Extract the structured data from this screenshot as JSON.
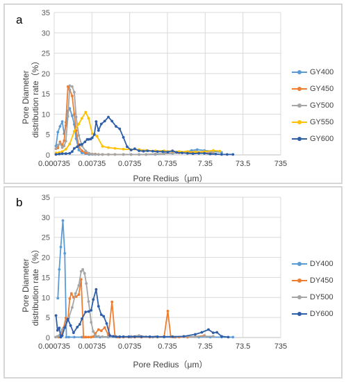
{
  "charts": [
    {
      "panel_label": "a",
      "ylabel_line1": "Pore Diameter",
      "ylabel_line2": "distribution rate（%）",
      "xlabel": "Pore Redius（μm）",
      "legend": [
        {
          "name": "GY400",
          "color": "#5b9bd5"
        },
        {
          "name": "GY450",
          "color": "#ed7d31"
        },
        {
          "name": "GY500",
          "color": "#a5a5a5"
        },
        {
          "name": "GY550",
          "color": "#ffc000"
        },
        {
          "name": "GY600",
          "color": "#2e5ea8"
        }
      ]
    },
    {
      "panel_label": "b",
      "ylabel_line1": "Pore Diameter",
      "ylabel_line2": "distribution rate（%）",
      "xlabel": "Pore Redius（μm）",
      "legend": [
        {
          "name": "DY400",
          "color": "#5b9bd5"
        },
        {
          "name": "DY450",
          "color": "#ed7d31"
        },
        {
          "name": "DY500",
          "color": "#a5a5a5"
        },
        {
          "name": "DY600",
          "color": "#2e5ea8"
        }
      ]
    }
  ],
  "chart_data": [
    {
      "type": "line",
      "x_scale": "log",
      "xlim": [
        0.000735,
        735
      ],
      "ylim": [
        0,
        35
      ],
      "grid": true,
      "legend_position": "right",
      "x_ticks": [
        "0.000735",
        "0.00735",
        "0.0735",
        "0.735",
        "7.35",
        "73.5",
        "735"
      ],
      "x_tick_values": [
        0.000735,
        0.00735,
        0.0735,
        0.735,
        7.35,
        73.5,
        735
      ],
      "y_ticks": [
        "0",
        "5",
        "10",
        "15",
        "20",
        "25",
        "30",
        "35"
      ],
      "y_tick_values": [
        0,
        5,
        10,
        15,
        20,
        25,
        30,
        35
      ],
      "series": [
        {
          "name": "GY400",
          "color": "#5b9bd5",
          "x": [
            0.00082,
            0.00092,
            0.00105,
            0.0012,
            0.00135,
            0.0015,
            0.0017,
            0.0019,
            0.0022,
            0.0025,
            0.0028,
            0.0033,
            0.004,
            0.005,
            0.0062,
            0.0075,
            0.009,
            0.011,
            0.014,
            0.02,
            0.03,
            0.05,
            0.08,
            0.13,
            0.2,
            0.35,
            0.6,
            1,
            1.5,
            2.2,
            3.2,
            4.5,
            7,
            12,
            20
          ],
          "y": [
            2.2,
            5.6,
            7,
            8.2,
            5.2,
            7.2,
            10.8,
            11.4,
            9.6,
            7.5,
            4,
            1.2,
            0.5,
            0.3,
            0.1,
            0.1,
            0.1,
            0.1,
            0.1,
            0.1,
            0.1,
            0.1,
            0.1,
            0.1,
            0.1,
            0.1,
            0.3,
            0.4,
            0.5,
            0.7,
            1.1,
            1.3,
            1.1,
            0.9,
            0.6
          ]
        },
        {
          "name": "GY450",
          "color": "#ed7d31",
          "x": [
            0.00082,
            0.00092,
            0.00105,
            0.0012,
            0.00135,
            0.0015,
            0.0017,
            0.0019,
            0.0022,
            0.0025,
            0.0028,
            0.0033,
            0.004,
            0.005,
            0.0062,
            0.0075,
            0.009,
            0.011,
            0.014,
            0.02,
            0.03,
            0.05,
            0.08,
            0.13,
            0.2,
            0.35,
            0.6,
            1,
            1.5,
            2.5,
            4,
            7,
            12
          ],
          "y": [
            1.5,
            1.7,
            3.2,
            2.4,
            3.5,
            8,
            16.8,
            16,
            14.5,
            10,
            6,
            2,
            1,
            0.5,
            0.3,
            0.2,
            0.2,
            0.1,
            0.1,
            0.1,
            0.1,
            0.1,
            0.1,
            0.1,
            0.1,
            0.2,
            0.3,
            0.5,
            0.5,
            0.6,
            0.5,
            0.4,
            0.4
          ]
        },
        {
          "name": "GY500",
          "color": "#a5a5a5",
          "x": [
            0.00082,
            0.00092,
            0.00105,
            0.0012,
            0.00135,
            0.0015,
            0.0017,
            0.0019,
            0.0022,
            0.0025,
            0.0028,
            0.0033,
            0.004,
            0.005,
            0.0062,
            0.0075,
            0.009,
            0.011,
            0.014,
            0.02,
            0.03,
            0.05,
            0.08,
            0.13,
            0.2,
            0.35,
            0.6,
            1,
            1.5,
            2.5,
            4,
            7,
            12
          ],
          "y": [
            1.5,
            2.4,
            2.8,
            1.8,
            2.2,
            3.4,
            9.5,
            17,
            16.8,
            15.4,
            9.3,
            4.8,
            2.2,
            1,
            0.4,
            0.2,
            0.1,
            0.1,
            0.1,
            0.1,
            0.1,
            0.1,
            0.1,
            0.1,
            0.1,
            0.2,
            0.3,
            0.4,
            0.6,
            0.8,
            0.8,
            0.8,
            0.6
          ]
        },
        {
          "name": "GY550",
          "color": "#ffc000",
          "x": [
            0.00082,
            0.001,
            0.0012,
            0.0015,
            0.0019,
            0.0025,
            0.0033,
            0.004,
            0.005,
            0.006,
            0.0075,
            0.01,
            0.014,
            0.02,
            0.03,
            0.05,
            0.08,
            0.13,
            0.2,
            0.35,
            0.6,
            1,
            1.5,
            2.5,
            4,
            7,
            12,
            18
          ],
          "y": [
            0.5,
            0.6,
            0.8,
            1.4,
            2.7,
            5.8,
            7.6,
            9,
            10.5,
            9,
            5.2,
            4.6,
            2.1,
            1.8,
            1.6,
            1.4,
            1.3,
            1.3,
            1.1,
            1,
            1,
            0.9,
            0.8,
            0.8,
            0.7,
            0.8,
            1.1,
            0.9
          ]
        },
        {
          "name": "GY600",
          "color": "#2e5ea8",
          "x": [
            0.00082,
            0.001,
            0.0012,
            0.0015,
            0.0019,
            0.0022,
            0.0025,
            0.003,
            0.0035,
            0.004,
            0.0048,
            0.0055,
            0.006,
            0.0068,
            0.0075,
            0.0085,
            0.0095,
            0.011,
            0.013,
            0.016,
            0.02,
            0.025,
            0.032,
            0.04,
            0.05,
            0.063,
            0.08,
            0.1,
            0.13,
            0.17,
            0.22,
            0.3,
            0.4,
            0.55,
            0.75,
            1,
            1.3,
            1.8,
            2.5,
            3.5,
            5,
            7,
            10,
            14,
            20,
            28,
            40
          ],
          "y": [
            0.1,
            0.2,
            0.3,
            0.3,
            0.4,
            0.8,
            1.6,
            2,
            2.5,
            2.6,
            3.2,
            3.8,
            3.8,
            3.9,
            4.2,
            5,
            8.2,
            6,
            7.6,
            8.3,
            9.3,
            8.3,
            7,
            6.4,
            4.3,
            2,
            1.2,
            1.5,
            1,
            0.9,
            1,
            0.9,
            0.8,
            0.8,
            0.7,
            1,
            0.6,
            0.5,
            0.4,
            0.3,
            0.4,
            0.4,
            0.2,
            0.2,
            0.1,
            0.1,
            0.1
          ]
        }
      ]
    },
    {
      "type": "line",
      "x_scale": "log",
      "xlim": [
        0.000735,
        735
      ],
      "ylim": [
        0,
        35
      ],
      "grid": true,
      "legend_position": "right",
      "x_ticks": [
        "0.000735",
        "0.00735",
        "0.0735",
        "0.735",
        "7.35",
        "73.5",
        "735"
      ],
      "x_tick_values": [
        0.000735,
        0.00735,
        0.0735,
        0.735,
        7.35,
        73.5,
        735
      ],
      "y_ticks": [
        "0",
        "5",
        "10",
        "15",
        "20",
        "25",
        "30",
        "35"
      ],
      "y_tick_values": [
        0,
        5,
        10,
        15,
        20,
        25,
        30,
        35
      ],
      "series": [
        {
          "name": "DY400",
          "color": "#5b9bd5",
          "x": [
            0.00092,
            0.001,
            0.0011,
            0.00125,
            0.0014,
            0.00155,
            0.0018,
            0.0025,
            0.004,
            0.007,
            0.012,
            0.02,
            0.04,
            0.08,
            0.15,
            0.3,
            0.6,
            1.2,
            2.5,
            5,
            10,
            20,
            40
          ],
          "y": [
            9.8,
            17,
            22.6,
            29.2,
            21,
            0.1,
            0.1,
            0.1,
            0.1,
            0.1,
            0.1,
            0.1,
            0.1,
            0.1,
            0.1,
            0.1,
            0.1,
            0.1,
            0.1,
            0.1,
            0.1,
            0.1,
            0.1
          ]
        },
        {
          "name": "DY450",
          "color": "#ed7d31",
          "x": [
            0.00095,
            0.0011,
            0.0013,
            0.0015,
            0.0017,
            0.0019,
            0.0021,
            0.0024,
            0.0028,
            0.0033,
            0.0038,
            0.0044,
            0.0048,
            0.0052,
            0.006,
            0.007,
            0.008,
            0.009,
            0.011,
            0.013,
            0.016,
            0.02,
            0.025,
            0.03,
            0.035,
            0.04,
            0.05,
            0.07,
            0.1,
            0.15,
            0.25,
            0.4,
            0.6,
            0.75,
            0.9,
            1.1,
            1.5,
            2.5,
            4,
            7
          ],
          "y": [
            0.1,
            0.1,
            2.4,
            4.9,
            4.6,
            9.7,
            11,
            10,
            10.2,
            10.7,
            14.5,
            0.1,
            0.1,
            0.1,
            0.1,
            0.1,
            0.2,
            1,
            2,
            1.7,
            2.5,
            0.6,
            8.9,
            0.3,
            0.1,
            0.1,
            0.1,
            0.1,
            0.1,
            0.1,
            0.1,
            0.1,
            0.2,
            6.6,
            0.2,
            0.1,
            0.1,
            0.1,
            0.2,
            0.5
          ]
        },
        {
          "name": "DY500",
          "color": "#a5a5a5",
          "x": [
            0.0008,
            0.0009,
            0.001,
            0.0012,
            0.0015,
            0.0018,
            0.0022,
            0.0027,
            0.0033,
            0.0038,
            0.0042,
            0.0047,
            0.0052,
            0.006,
            0.007,
            0.008,
            0.009,
            0.011,
            0.014,
            0.02,
            0.03,
            0.05,
            0.08,
            0.13,
            0.2,
            0.35,
            0.6,
            1,
            2,
            4,
            7,
            12
          ],
          "y": [
            0.1,
            0.3,
            0.5,
            2,
            3,
            5,
            7.5,
            11,
            13,
            16.5,
            17,
            16,
            13.5,
            9,
            3.8,
            1.5,
            0.5,
            0.3,
            0.2,
            0.2,
            0.2,
            0.2,
            0.3,
            0.5,
            0.2,
            0.2,
            0.2,
            0.2,
            0.2,
            0.2,
            0.3,
            0.3
          ]
        },
        {
          "name": "DY600",
          "color": "#2e5ea8",
          "x": [
            0.00082,
            0.0009,
            0.001,
            0.0011,
            0.0012,
            0.0014,
            0.0017,
            0.002,
            0.0024,
            0.003,
            0.0035,
            0.004,
            0.005,
            0.006,
            0.007,
            0.008,
            0.0095,
            0.011,
            0.013,
            0.015,
            0.018,
            0.022,
            0.027,
            0.032,
            0.04,
            0.05,
            0.07,
            0.1,
            0.15,
            0.25,
            0.4,
            0.6,
            1,
            2,
            4,
            6,
            9,
            12,
            15,
            20,
            30
          ],
          "y": [
            5.5,
            1.8,
            2.4,
            0.1,
            0.5,
            2.5,
            4.6,
            3,
            1.2,
            2.6,
            3.3,
            4.7,
            6.4,
            6.5,
            6.8,
            9.5,
            12,
            7.8,
            5.7,
            5.3,
            3.5,
            0.5,
            0.3,
            0.2,
            0.2,
            0.2,
            0.2,
            0.2,
            0.2,
            0.2,
            0.2,
            0.2,
            0.2,
            0.3,
            0.8,
            1.3,
            2,
            1.2,
            1.3,
            0.3,
            0.1
          ]
        }
      ]
    }
  ]
}
